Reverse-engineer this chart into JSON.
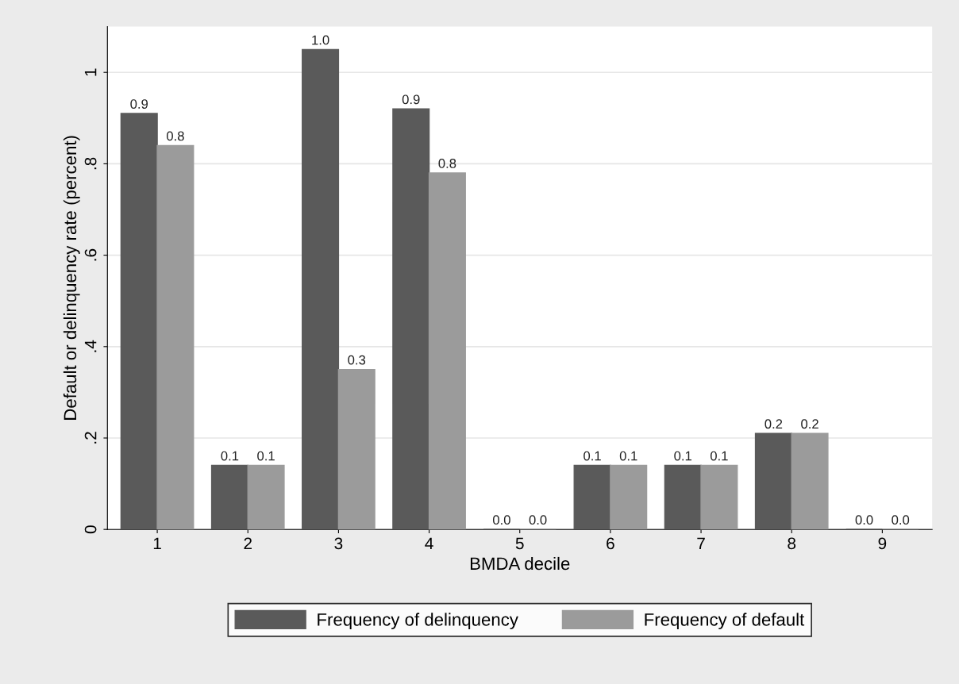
{
  "chart_data": {
    "type": "bar",
    "xlabel": "BMDA decile",
    "ylabel": "Default or delinquency rate (percent)",
    "categories": [
      "1",
      "2",
      "3",
      "4",
      "5",
      "6",
      "7",
      "8",
      "9"
    ],
    "series": [
      {
        "name": "Frequency of delinquency",
        "color": "#5a5a5a",
        "values": [
          0.91,
          0.14,
          1.05,
          0.92,
          0,
          0.14,
          0.14,
          0.21,
          0
        ],
        "value_labels": [
          "0.9",
          "0.1",
          "1.0",
          "0.9",
          "0.0",
          "0.1",
          "0.1",
          "0.2",
          "0.0"
        ]
      },
      {
        "name": "Frequency of default",
        "color": "#9b9b9b",
        "values": [
          0.84,
          0.14,
          0.35,
          0.78,
          0,
          0.14,
          0.14,
          0.21,
          0
        ],
        "value_labels": [
          "0.8",
          "0.1",
          "0.3",
          "0.8",
          "0.0",
          "0.1",
          "0.1",
          "0.2",
          "0.0"
        ]
      }
    ],
    "ylim": [
      0,
      1.1
    ],
    "yticks": [
      {
        "value": 0,
        "label": "0"
      },
      {
        "value": 0.2,
        "label": ".2"
      },
      {
        "value": 0.4,
        "label": ".4"
      },
      {
        "value": 0.6,
        "label": ".6"
      },
      {
        "value": 0.8,
        "label": ".8"
      },
      {
        "value": 1,
        "label": "1"
      }
    ],
    "grid": "y",
    "legend": "bottom"
  }
}
